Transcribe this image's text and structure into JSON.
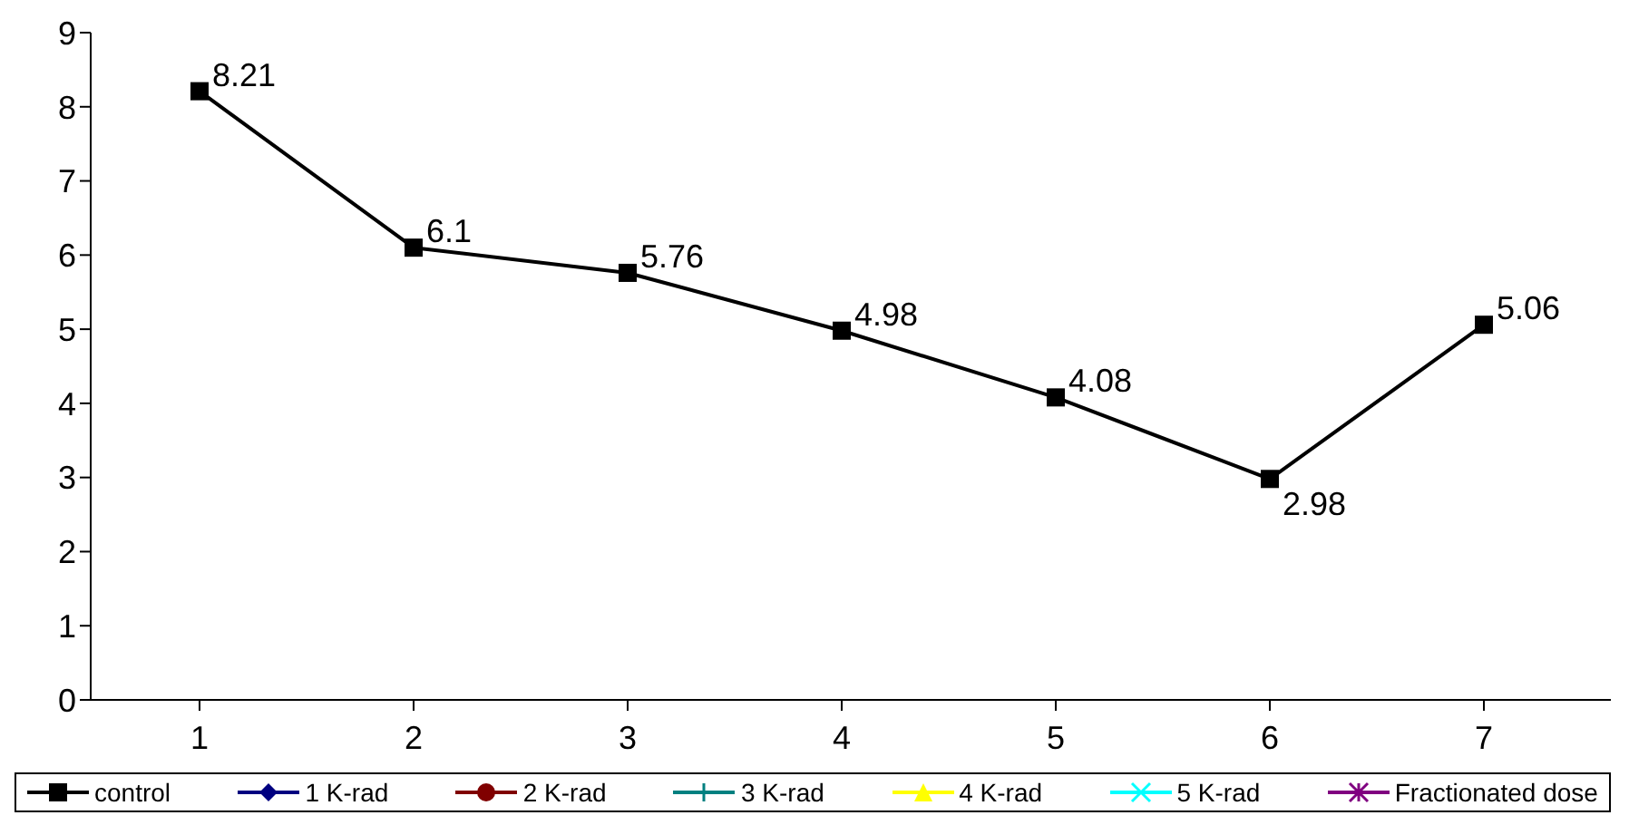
{
  "chart_data": {
    "type": "line",
    "categories": [
      "1",
      "2",
      "3",
      "4",
      "5",
      "6",
      "7"
    ],
    "series": [
      {
        "name": "control",
        "color": "#000000",
        "marker": "square",
        "values": [
          8.21,
          6.1,
          5.76,
          4.98,
          4.08,
          2.98,
          5.06
        ]
      },
      {
        "name": "1 K-rad",
        "color": "#000080",
        "marker": "diamond",
        "values": [
          null,
          null,
          null,
          null,
          null,
          null,
          null
        ]
      },
      {
        "name": "2 K-rad",
        "color": "#800000",
        "marker": "circle",
        "values": [
          null,
          null,
          null,
          null,
          null,
          null,
          null
        ]
      },
      {
        "name": "3 K-rad",
        "color": "#008080",
        "marker": "cross",
        "values": [
          null,
          null,
          null,
          null,
          null,
          null,
          null
        ]
      },
      {
        "name": "4 K-rad",
        "color": "#ffff00",
        "marker": "triangle",
        "values": [
          null,
          null,
          null,
          null,
          null,
          null,
          null
        ]
      },
      {
        "name": "5 K-rad",
        "color": "#00ffff",
        "marker": "x",
        "values": [
          null,
          null,
          null,
          null,
          null,
          null,
          null
        ]
      },
      {
        "name": "Fractionated dose",
        "color": "#800080",
        "marker": "star",
        "values": [
          null,
          null,
          null,
          null,
          null,
          null,
          null
        ]
      }
    ],
    "ylim": [
      0,
      9
    ],
    "yticks": [
      0,
      1,
      2,
      3,
      4,
      5,
      6,
      7,
      8,
      9
    ],
    "grid": false,
    "legend": "bottom",
    "data_labels": true
  }
}
